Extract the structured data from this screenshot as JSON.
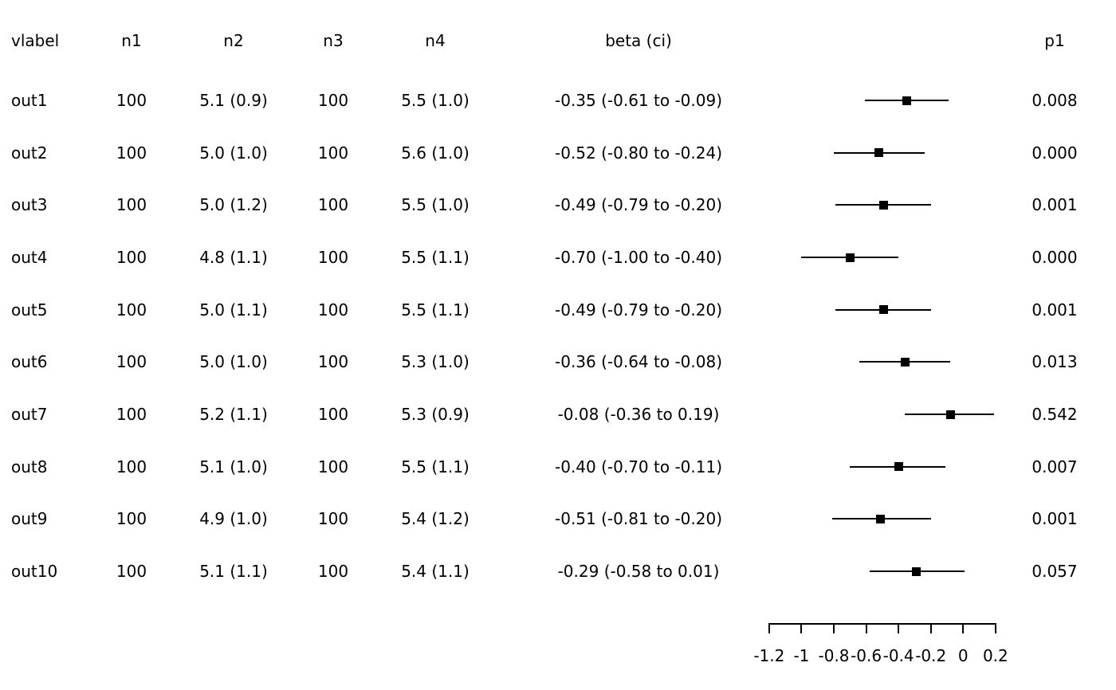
{
  "header": {
    "vlabel": "vlabel",
    "n1": "n1",
    "n2": "n2",
    "n3": "n3",
    "n4": "n4",
    "beta_ci": "beta (ci)",
    "p1": "p1"
  },
  "rows": [
    {
      "vlabel": "out1",
      "n1": "100",
      "n2": "5.1 (0.9)",
      "n3": "100",
      "n4": "5.5 (1.0)",
      "beta_ci": "-0.35 (-0.61 to -0.09)",
      "p1": "0.008"
    },
    {
      "vlabel": "out2",
      "n1": "100",
      "n2": "5.0 (1.0)",
      "n3": "100",
      "n4": "5.6 (1.0)",
      "beta_ci": "-0.52 (-0.80 to -0.24)",
      "p1": "0.000"
    },
    {
      "vlabel": "out3",
      "n1": "100",
      "n2": "5.0 (1.2)",
      "n3": "100",
      "n4": "5.5 (1.0)",
      "beta_ci": "-0.49 (-0.79 to -0.20)",
      "p1": "0.001"
    },
    {
      "vlabel": "out4",
      "n1": "100",
      "n2": "4.8 (1.1)",
      "n3": "100",
      "n4": "5.5 (1.1)",
      "beta_ci": "-0.70 (-1.00 to -0.40)",
      "p1": "0.000"
    },
    {
      "vlabel": "out5",
      "n1": "100",
      "n2": "5.0 (1.1)",
      "n3": "100",
      "n4": "5.5 (1.1)",
      "beta_ci": "-0.49 (-0.79 to -0.20)",
      "p1": "0.001"
    },
    {
      "vlabel": "out6",
      "n1": "100",
      "n2": "5.0 (1.0)",
      "n3": "100",
      "n4": "5.3 (1.0)",
      "beta_ci": "-0.36 (-0.64 to -0.08)",
      "p1": "0.013"
    },
    {
      "vlabel": "out7",
      "n1": "100",
      "n2": "5.2 (1.1)",
      "n3": "100",
      "n4": "5.3 (0.9)",
      "beta_ci": "-0.08 (-0.36 to 0.19)",
      "p1": "0.542"
    },
    {
      "vlabel": "out8",
      "n1": "100",
      "n2": "5.1 (1.0)",
      "n3": "100",
      "n4": "5.5 (1.1)",
      "beta_ci": "-0.40 (-0.70 to -0.11)",
      "p1": "0.007"
    },
    {
      "vlabel": "out9",
      "n1": "100",
      "n2": "4.9 (1.0)",
      "n3": "100",
      "n4": "5.4 (1.2)",
      "beta_ci": "-0.51 (-0.81 to -0.20)",
      "p1": "0.001"
    },
    {
      "vlabel": "out10",
      "n1": "100",
      "n2": "5.1 (1.1)",
      "n3": "100",
      "n4": "5.4 (1.1)",
      "beta_ci": "-0.29 (-0.58 to 0.01)",
      "p1": "0.057"
    }
  ],
  "chart_data": {
    "type": "scatter",
    "variant": "forest-plot",
    "title": "",
    "xlabel": "",
    "ylabel": "",
    "marker": "filled-square",
    "color": "#000000",
    "grid": false,
    "xlim": [
      -1.2,
      0.2
    ],
    "x_ticks": [
      -1.2,
      -1,
      -0.8,
      -0.6,
      -0.4,
      -0.2,
      0,
      0.2
    ],
    "x_tick_labels": [
      "-1.2",
      "-1",
      "-0.8",
      "-0.6",
      "-0.4",
      "-0.2",
      "0",
      "0.2"
    ],
    "points": [
      {
        "label": "out1",
        "beta": -0.35,
        "ci_low": -0.61,
        "ci_high": -0.09,
        "p": 0.008
      },
      {
        "label": "out2",
        "beta": -0.52,
        "ci_low": -0.8,
        "ci_high": -0.24,
        "p": 0.0
      },
      {
        "label": "out3",
        "beta": -0.49,
        "ci_low": -0.79,
        "ci_high": -0.2,
        "p": 0.001
      },
      {
        "label": "out4",
        "beta": -0.7,
        "ci_low": -1.0,
        "ci_high": -0.4,
        "p": 0.0
      },
      {
        "label": "out5",
        "beta": -0.49,
        "ci_low": -0.79,
        "ci_high": -0.2,
        "p": 0.001
      },
      {
        "label": "out6",
        "beta": -0.36,
        "ci_low": -0.64,
        "ci_high": -0.08,
        "p": 0.013
      },
      {
        "label": "out7",
        "beta": -0.08,
        "ci_low": -0.36,
        "ci_high": 0.19,
        "p": 0.542
      },
      {
        "label": "out8",
        "beta": -0.4,
        "ci_low": -0.7,
        "ci_high": -0.11,
        "p": 0.007
      },
      {
        "label": "out9",
        "beta": -0.51,
        "ci_low": -0.81,
        "ci_high": -0.2,
        "p": 0.001
      },
      {
        "label": "out10",
        "beta": -0.29,
        "ci_low": -0.58,
        "ci_high": 0.01,
        "p": 0.057
      }
    ]
  }
}
